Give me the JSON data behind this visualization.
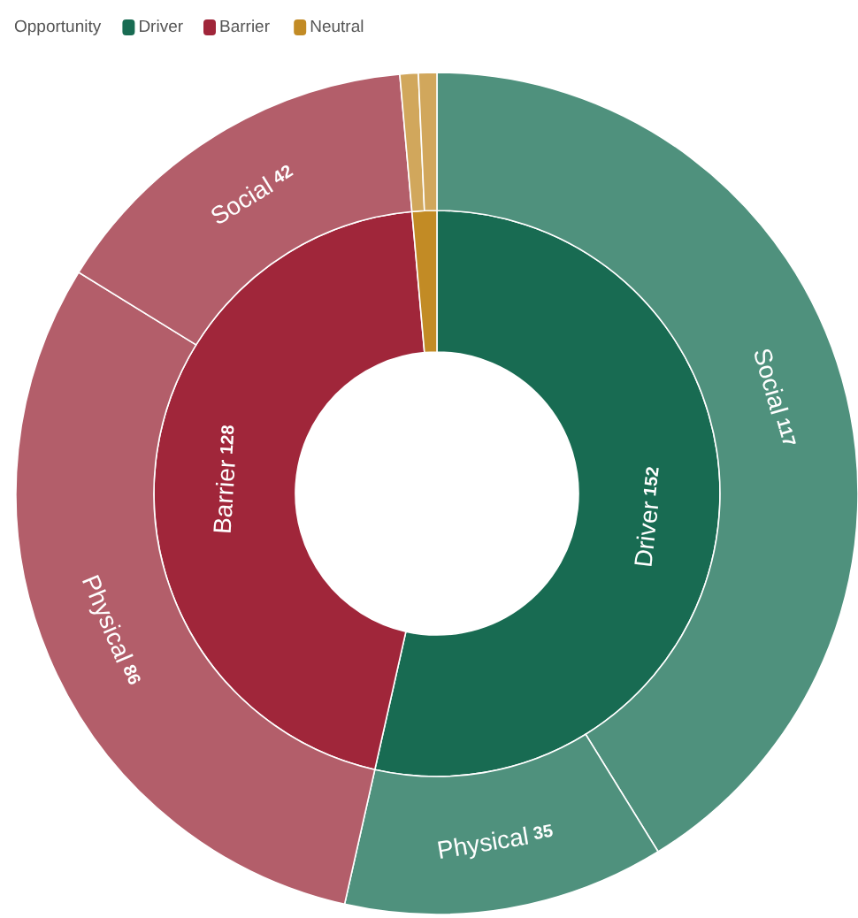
{
  "chart_data": [
    {
      "type": "donut",
      "legend_title": "Opportunity",
      "legend": "top left",
      "categories": [
        "Driver",
        "Barrier",
        "Neutral"
      ],
      "values": [
        152,
        128,
        4
      ],
      "colors": [
        "#186b52",
        "#a0263a",
        "#c28b25"
      ],
      "value_labels": [
        "152",
        "128",
        null
      ]
    },
    {
      "type": "donut",
      "categories": [
        "Social",
        "Physical",
        "Physical",
        "Social",
        null,
        null
      ],
      "values": [
        117,
        35,
        86,
        42,
        2,
        2
      ],
      "colors": [
        "#4f917d",
        "#4f917d",
        "#b35e6a",
        "#b35e6a",
        "#d1a75c",
        "#d1a75c"
      ],
      "value_labels": [
        "117",
        "35",
        "86",
        "42",
        null,
        null
      ]
    }
  ]
}
